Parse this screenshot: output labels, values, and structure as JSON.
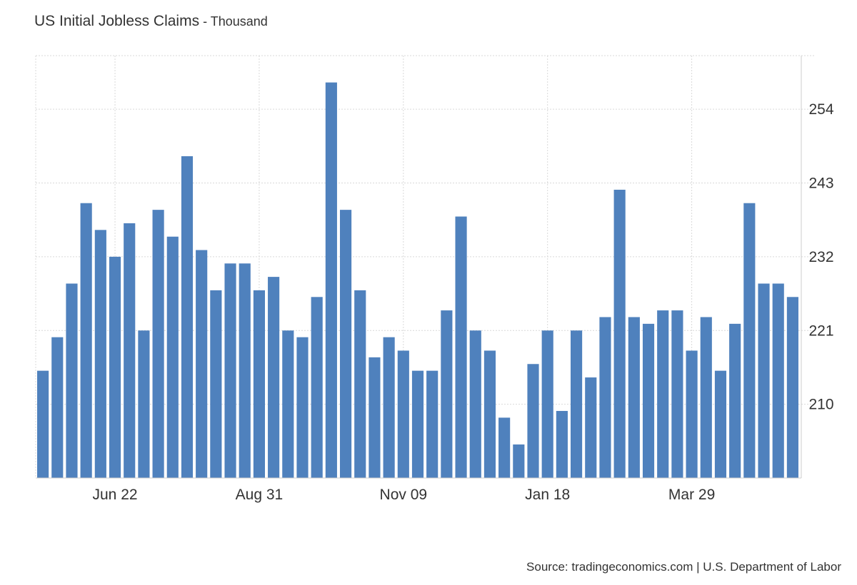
{
  "header": {
    "title": "US Initial Jobless Claims",
    "subtitle": " - Thousand"
  },
  "source": "Source: tradingeconomics.com | U.S. Department of Labor",
  "colors": {
    "bar": "#4f81bd",
    "grid": "#d9d9d9",
    "axis": "#cccccc"
  },
  "chart_data": {
    "type": "bar",
    "title": "US Initial Jobless Claims",
    "subtitle": "Thousand",
    "ylim": [
      199,
      262
    ],
    "yticks": [
      210,
      221,
      232,
      243,
      254
    ],
    "xtick_labels": [
      "Jun 22",
      "Aug 31",
      "Nov 09",
      "Jan 18",
      "Mar 29"
    ],
    "xtick_bar_index": [
      5,
      15,
      25,
      35,
      45
    ],
    "grid": true,
    "y_axis_side": "right",
    "series": [
      {
        "values": [
          215,
          220,
          228,
          240,
          236,
          232,
          237,
          221,
          239,
          235,
          247,
          233,
          227,
          231,
          231,
          227,
          229,
          221,
          220,
          226,
          258,
          239,
          227,
          217,
          220,
          218,
          215,
          215,
          224,
          238,
          221,
          218,
          208,
          204,
          216,
          221,
          209,
          221,
          214,
          223,
          242,
          223,
          222,
          224,
          224,
          218,
          223,
          215,
          222,
          240,
          228,
          228,
          226
        ]
      }
    ]
  }
}
